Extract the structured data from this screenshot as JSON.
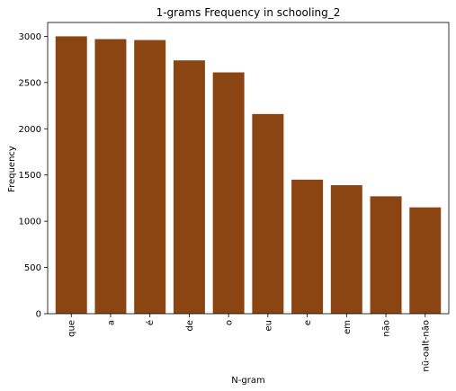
{
  "chart_data": {
    "type": "bar",
    "title": "1-grams Frequency in schooling_2",
    "xlabel": "N-gram",
    "ylabel": "Frequency",
    "categories": [
      "que",
      "a",
      "é",
      "de",
      "o",
      "eu",
      "e",
      "em",
      "não",
      "nũ-oalt-não"
    ],
    "values": [
      3000,
      2970,
      2960,
      2740,
      2610,
      2160,
      1450,
      1390,
      1270,
      1150
    ],
    "ylim": [
      0,
      3150
    ],
    "yticks": [
      0,
      500,
      1000,
      1500,
      2000,
      2500,
      3000
    ],
    "bar_color": "#8B4513",
    "grid": false
  }
}
